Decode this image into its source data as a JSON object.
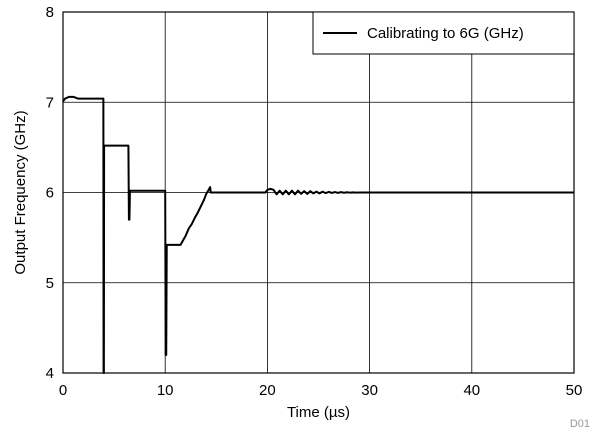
{
  "chart_data": {
    "type": "line",
    "title": "",
    "xlabel": "Time (µs)",
    "ylabel": "Output Frequency (GHz)",
    "xlim": [
      0,
      50
    ],
    "ylim": [
      4,
      8
    ],
    "xticks": [
      0,
      10,
      20,
      30,
      40,
      50
    ],
    "yticks": [
      4,
      5,
      6,
      7,
      8
    ],
    "grid": true,
    "legend_position": "top-right",
    "figure_id": "D01",
    "series": [
      {
        "name": "Calibrating to 6G (GHz)",
        "color": "#000000",
        "x": [
          0,
          0.2,
          0.6,
          1.0,
          1.5,
          2.0,
          2.5,
          3.0,
          3.5,
          3.95,
          3.97,
          4.0,
          4.02,
          4.05,
          4.3,
          4.8,
          5.5,
          6.0,
          6.3,
          6.4,
          6.45,
          6.5,
          6.55,
          6.6,
          6.7,
          7.0,
          8.0,
          9.0,
          9.9,
          10.0,
          10.05,
          10.1,
          10.15,
          10.2,
          10.3,
          11.0,
          11.5,
          11.8,
          12.0,
          12.3,
          12.6,
          12.9,
          13.2,
          13.5,
          13.8,
          14.0,
          14.2,
          14.4,
          14.45,
          14.6,
          16.0,
          18.0,
          19.5,
          19.8,
          20.0,
          20.3,
          20.6,
          20.9,
          21.2,
          21.5,
          21.8,
          22.1,
          22.4,
          22.7,
          23.0,
          23.3,
          23.6,
          23.9,
          24.2,
          24.5,
          24.8,
          25.1,
          25.4,
          25.7,
          26.0,
          26.3,
          26.6,
          26.9,
          27.2,
          27.5,
          27.8,
          28.1,
          28.4,
          28.7,
          29.0,
          29.5,
          30.0,
          35.0,
          40.0,
          45.0,
          50.0
        ],
        "y": [
          7.01,
          7.04,
          7.06,
          7.06,
          7.04,
          7.04,
          7.04,
          7.04,
          7.04,
          7.04,
          4.0,
          4.0,
          6.5,
          6.52,
          6.52,
          6.52,
          6.52,
          6.52,
          6.52,
          6.52,
          5.7,
          5.7,
          6.02,
          6.02,
          6.02,
          6.02,
          6.02,
          6.02,
          6.02,
          6.02,
          4.2,
          4.2,
          5.42,
          5.42,
          5.42,
          5.42,
          5.42,
          5.48,
          5.52,
          5.6,
          5.65,
          5.72,
          5.78,
          5.85,
          5.92,
          5.98,
          6.02,
          6.06,
          6.0,
          6.0,
          6.0,
          6.0,
          6.0,
          6.0,
          6.03,
          6.04,
          6.03,
          5.98,
          6.02,
          5.98,
          6.02,
          5.98,
          6.02,
          5.98,
          6.02,
          5.985,
          6.015,
          5.985,
          6.015,
          5.99,
          6.01,
          5.99,
          6.01,
          5.993,
          6.007,
          5.995,
          6.005,
          5.996,
          6.004,
          5.997,
          6.003,
          5.998,
          6.002,
          5.999,
          6.0,
          6.0,
          6.0,
          6.0,
          6.0,
          6.0,
          6.0
        ]
      }
    ]
  }
}
